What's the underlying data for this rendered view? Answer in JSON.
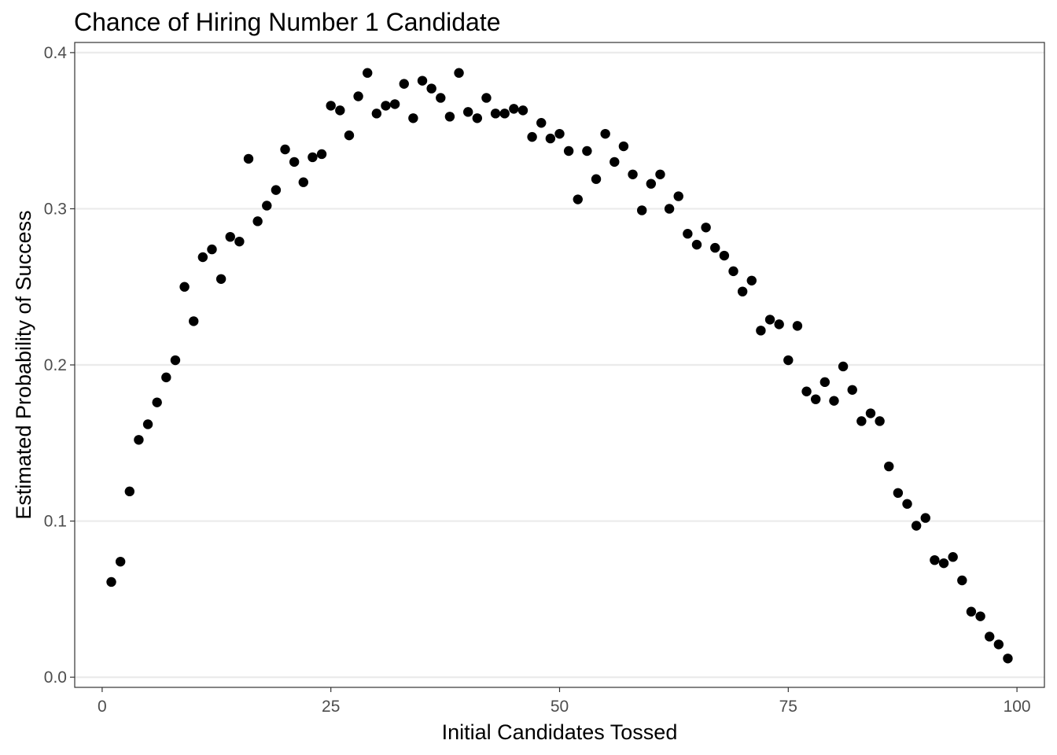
{
  "chart_data": {
    "type": "scatter",
    "title": "Chance of Hiring Number 1 Candidate",
    "xlabel": "Initial Candidates Tossed",
    "ylabel": "Estimated Probability of Success",
    "xlim": [
      -3,
      103
    ],
    "ylim": [
      -0.0065,
      0.4065
    ],
    "x_ticks": [
      0,
      25,
      50,
      75,
      100
    ],
    "y_ticks": [
      0.0,
      0.1,
      0.2,
      0.3,
      0.4
    ],
    "x_tick_labels": [
      "0",
      "25",
      "50",
      "75",
      "100"
    ],
    "y_tick_labels": [
      "0.0",
      "0.1",
      "0.2",
      "0.3",
      "0.4"
    ],
    "grid": true,
    "legend": "none",
    "point_color": "#000000",
    "x": [
      1,
      2,
      3,
      4,
      5,
      6,
      7,
      8,
      9,
      10,
      11,
      12,
      13,
      14,
      15,
      16,
      17,
      18,
      19,
      20,
      21,
      22,
      23,
      24,
      25,
      26,
      27,
      28,
      29,
      30,
      31,
      32,
      33,
      34,
      35,
      36,
      37,
      38,
      39,
      40,
      41,
      42,
      43,
      44,
      45,
      46,
      47,
      48,
      49,
      50,
      51,
      52,
      53,
      54,
      55,
      56,
      57,
      58,
      59,
      60,
      61,
      62,
      63,
      64,
      65,
      66,
      67,
      68,
      69,
      70,
      71,
      72,
      73,
      74,
      75,
      76,
      77,
      78,
      79,
      80,
      81,
      82,
      83,
      84,
      85,
      86,
      87,
      88,
      89,
      90,
      91,
      92,
      93,
      94,
      95,
      96,
      97,
      98,
      99
    ],
    "y": [
      0.061,
      0.074,
      0.119,
      0.152,
      0.162,
      0.176,
      0.192,
      0.203,
      0.25,
      0.228,
      0.269,
      0.274,
      0.255,
      0.282,
      0.279,
      0.332,
      0.292,
      0.302,
      0.312,
      0.338,
      0.33,
      0.317,
      0.333,
      0.335,
      0.366,
      0.363,
      0.347,
      0.372,
      0.387,
      0.361,
      0.366,
      0.367,
      0.38,
      0.358,
      0.382,
      0.377,
      0.371,
      0.359,
      0.387,
      0.362,
      0.358,
      0.371,
      0.361,
      0.361,
      0.364,
      0.363,
      0.346,
      0.355,
      0.345,
      0.348,
      0.337,
      0.306,
      0.337,
      0.319,
      0.348,
      0.33,
      0.34,
      0.322,
      0.299,
      0.316,
      0.322,
      0.3,
      0.308,
      0.284,
      0.277,
      0.288,
      0.275,
      0.27,
      0.26,
      0.247,
      0.254,
      0.222,
      0.229,
      0.226,
      0.203,
      0.225,
      0.183,
      0.178,
      0.189,
      0.177,
      0.199,
      0.184,
      0.164,
      0.169,
      0.164,
      0.135,
      0.118,
      0.111,
      0.097,
      0.102,
      0.075,
      0.073,
      0.077,
      0.062,
      0.042,
      0.039,
      0.026,
      0.021,
      0.012
    ]
  }
}
